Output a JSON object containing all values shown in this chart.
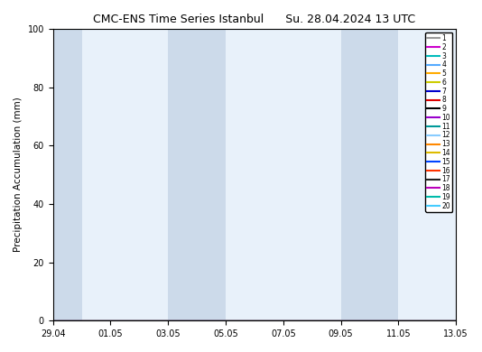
{
  "title_left": "CMC-ENS Time Series Istanbul",
  "title_right": "Su. 28.04.2024 13 UTC",
  "ylabel": "Precipitation Accumulation (mm)",
  "ylim": [
    0,
    100
  ],
  "yticks": [
    0,
    20,
    40,
    60,
    80,
    100
  ],
  "background_color": "#ffffff",
  "plot_bg_color": "#e8f1fa",
  "shaded_bg_color": "#ccdaea",
  "xtick_labels": [
    "29.04",
    "01.05",
    "03.05",
    "05.05",
    "07.05",
    "09.05",
    "11.05",
    "13.05"
  ],
  "xtick_positions": [
    0,
    2,
    4,
    6,
    8,
    10,
    12,
    14
  ],
  "shaded_ranges": [
    [
      0,
      1
    ],
    [
      4,
      6
    ],
    [
      10,
      12
    ]
  ],
  "legend_colors": [
    "#999999",
    "#cc00cc",
    "#00bbbb",
    "#55aaff",
    "#ffaa00",
    "#cccc00",
    "#0000cc",
    "#dd0000",
    "#000000",
    "#9900cc",
    "#009999",
    "#88ccff",
    "#ff8800",
    "#ddbb00",
    "#0044ff",
    "#ff3300",
    "#222222",
    "#bb00bb",
    "#00bbaa",
    "#44ccff"
  ],
  "legend_labels": [
    "1",
    "2",
    "3",
    "4",
    "5",
    "6",
    "7",
    "8",
    "9",
    "10",
    "11",
    "12",
    "13",
    "14",
    "15",
    "16",
    "17",
    "18",
    "19",
    "20"
  ],
  "title_fontsize": 9,
  "axis_fontsize": 7.5,
  "tick_fontsize": 7,
  "legend_fontsize": 5.5
}
